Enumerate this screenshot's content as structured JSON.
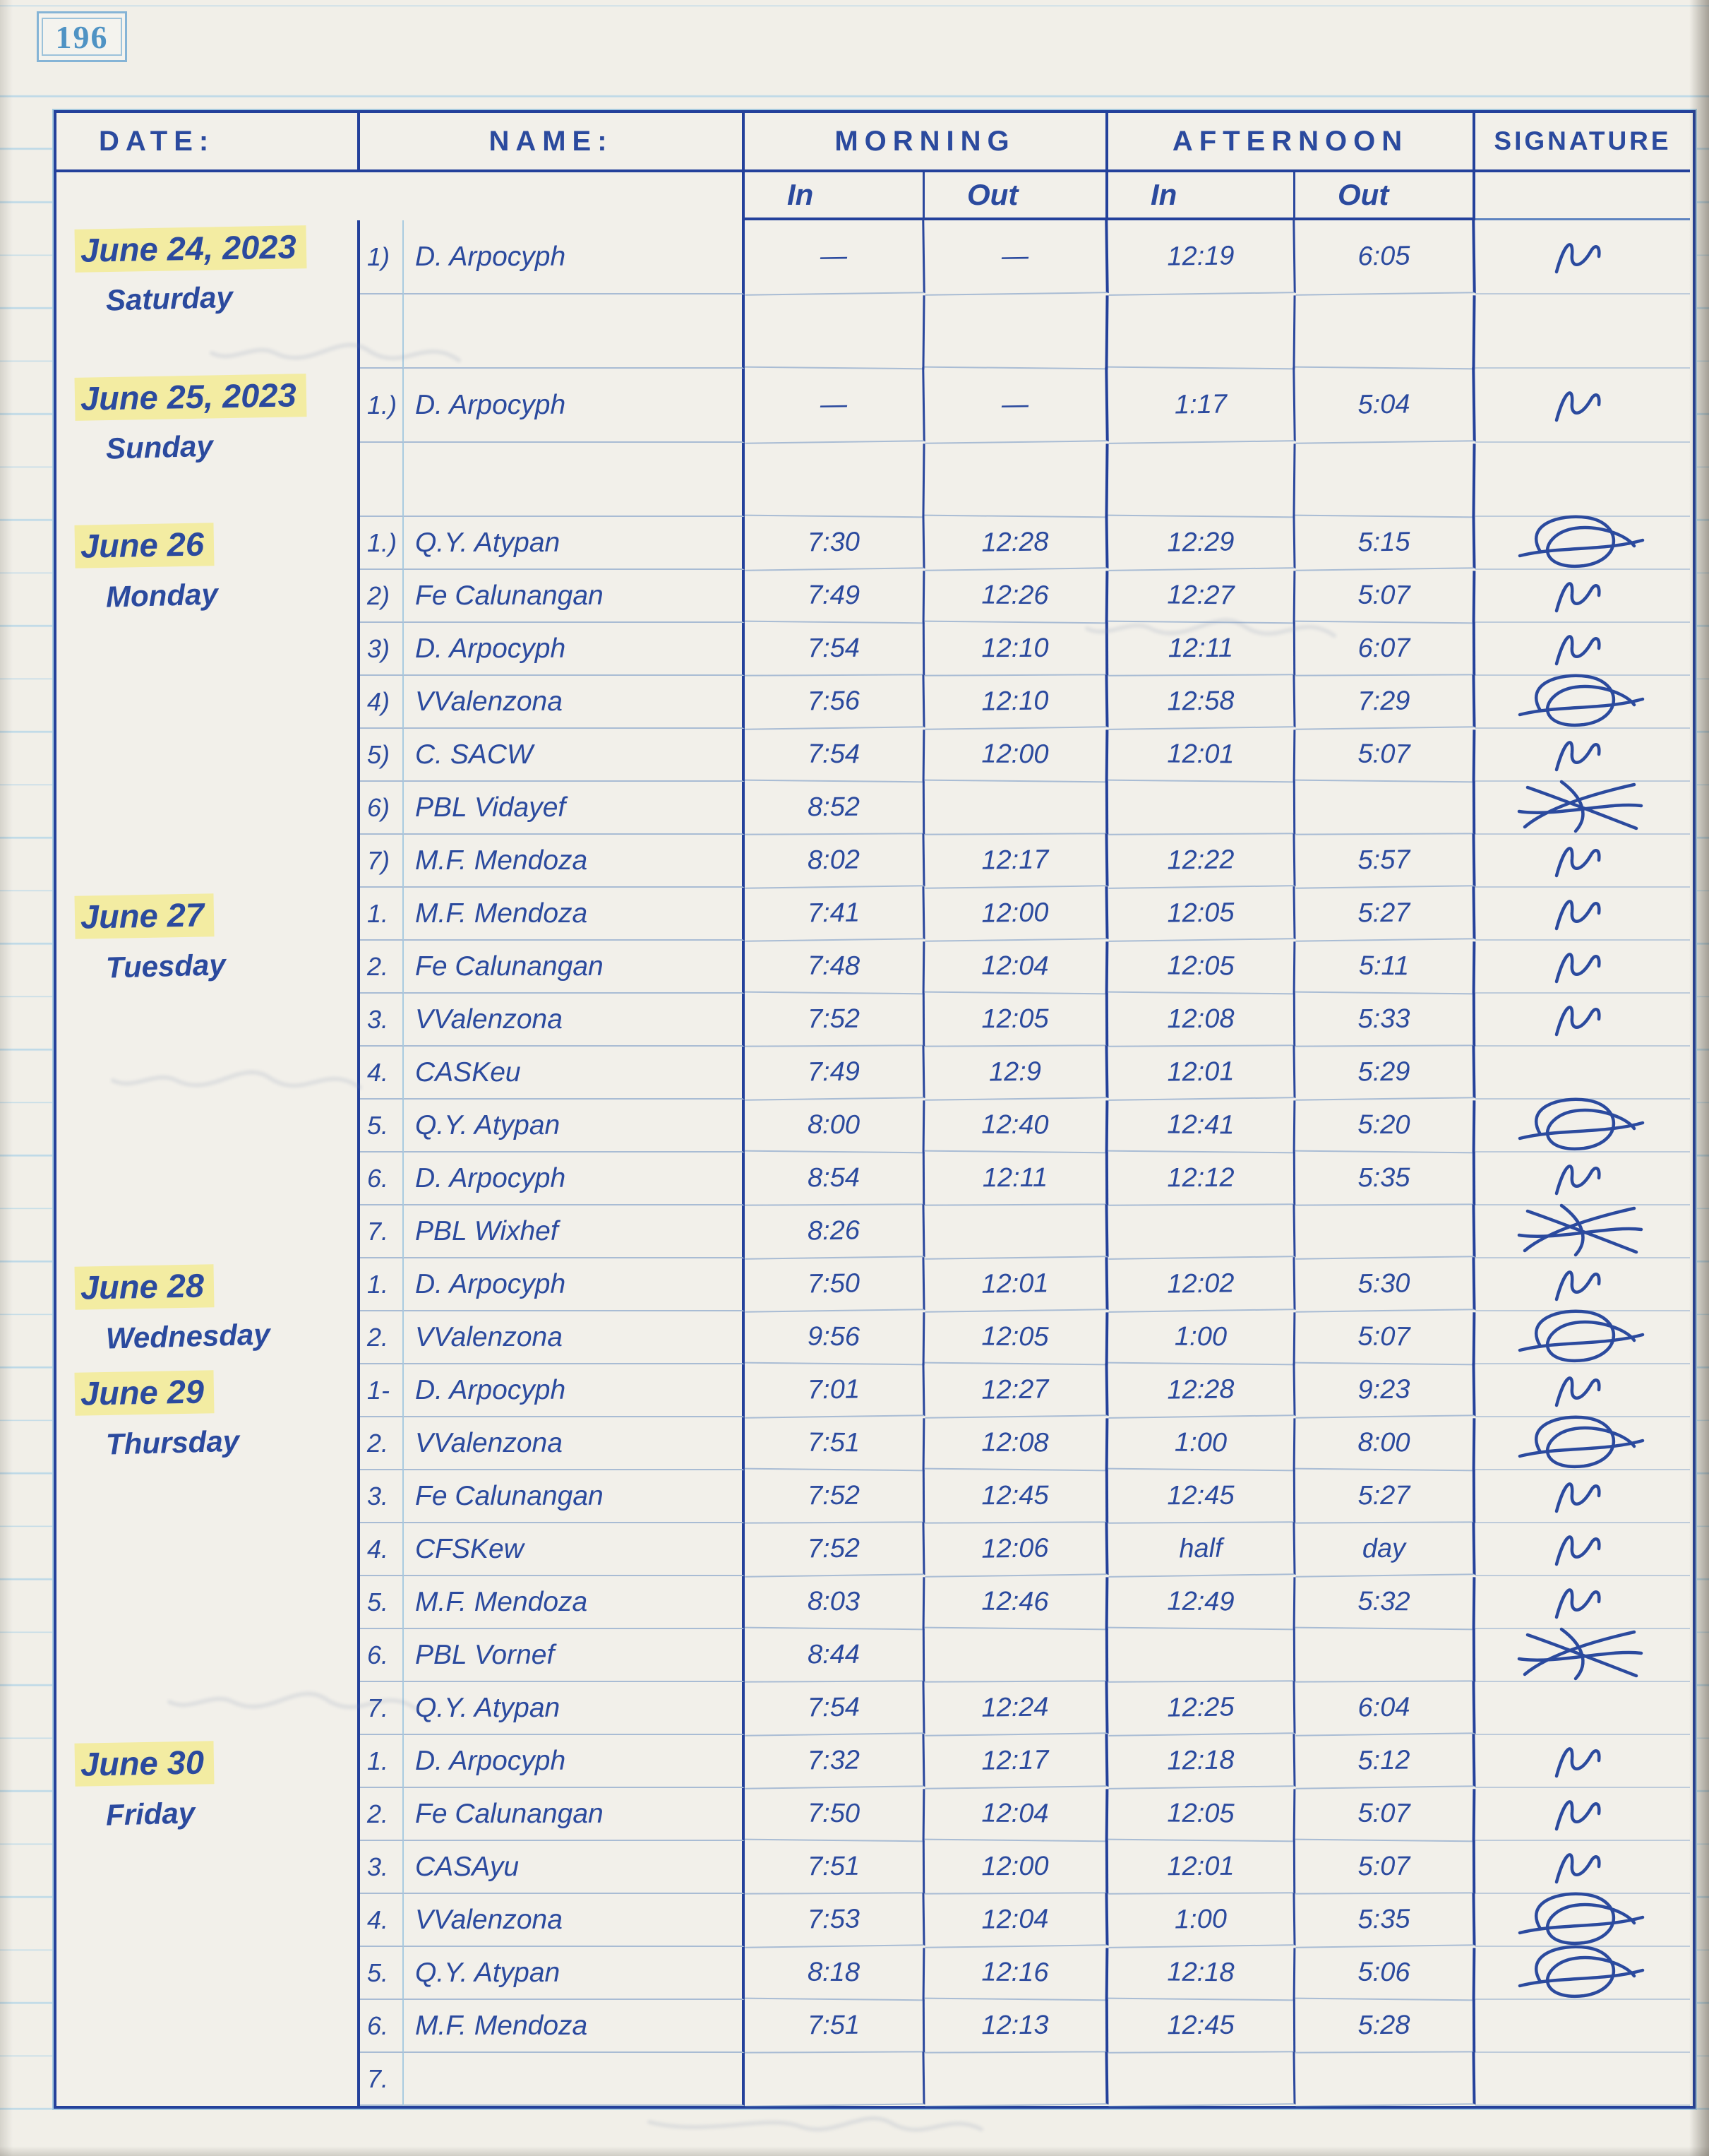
{
  "page_number": "196",
  "ink_color": "#2b4a9e",
  "highlight_color": "#f3eca2",
  "header": {
    "date_label": "DATE:",
    "name_label": "NAME:",
    "morning_label": "MORNING",
    "afternoon_label": "AFTERNOON",
    "signature_label": "SIGNATURE",
    "in_label": "In",
    "out_label": "Out"
  },
  "sections": [
    {
      "date_line1": "June 24, 2023",
      "date_line2": "Saturday",
      "rows": [
        {
          "num": "1)",
          "name": "D. Arpocyph",
          "m_in": "—",
          "m_out": "—",
          "a_in": "12:19",
          "a_out": "6:05",
          "signature": "squiggle"
        }
      ]
    },
    {
      "date_line1": "June 25, 2023",
      "date_line2": "Sunday",
      "rows": [
        {
          "num": "1.)",
          "name": "D. Arpocyph",
          "m_in": "—",
          "m_out": "—",
          "a_in": "1:17",
          "a_out": "5:04",
          "signature": "squiggle"
        }
      ]
    },
    {
      "date_line1": "June 26",
      "date_line2": "Monday",
      "rows": [
        {
          "num": "1.)",
          "name": "Q.Y. Atypan",
          "m_in": "7:30",
          "m_out": "12:28",
          "a_in": "12:29",
          "a_out": "5:15",
          "signature": "oval"
        },
        {
          "num": "2)",
          "name": "Fe Calunangan",
          "m_in": "7:49",
          "m_out": "12:26",
          "a_in": "12:27",
          "a_out": "5:07",
          "signature": "squiggle"
        },
        {
          "num": "3)",
          "name": "D. Arpocyph",
          "m_in": "7:54",
          "m_out": "12:10",
          "a_in": "12:11",
          "a_out": "6:07",
          "signature": "squiggle"
        },
        {
          "num": "4)",
          "name": "VValenzona",
          "m_in": "7:56",
          "m_out": "12:10",
          "a_in": "12:58",
          "a_out": "7:29",
          "signature": "oval"
        },
        {
          "num": "5)",
          "name": "C. SACW",
          "m_in": "7:54",
          "m_out": "12:00",
          "a_in": "12:01",
          "a_out": "5:07",
          "signature": "squiggle"
        },
        {
          "num": "6)",
          "name": "PBL Vidayef",
          "m_in": "8:52",
          "m_out": "",
          "a_in": "",
          "a_out": "",
          "signature": "crossout",
          "slash": true
        },
        {
          "num": "7)",
          "name": "M.F. Mendoza",
          "m_in": "8:02",
          "m_out": "12:17",
          "a_in": "12:22",
          "a_out": "5:57",
          "signature": "squiggle"
        }
      ]
    },
    {
      "date_line1": "June 27",
      "date_line2": "Tuesday",
      "rows": [
        {
          "num": "1.",
          "name": "M.F. Mendoza",
          "m_in": "7:41",
          "m_out": "12:00",
          "a_in": "12:05",
          "a_out": "5:27",
          "signature": "squiggle"
        },
        {
          "num": "2.",
          "name": "Fe Calunangan",
          "m_in": "7:48",
          "m_out": "12:04",
          "a_in": "12:05",
          "a_out": "5:11",
          "signature": "squiggle"
        },
        {
          "num": "3.",
          "name": "VValenzona",
          "m_in": "7:52",
          "m_out": "12:05",
          "a_in": "12:08",
          "a_out": "5:33",
          "signature": "squiggle"
        },
        {
          "num": "4.",
          "name": "CASKeu",
          "m_in": "7:49",
          "m_out": "12:9",
          "a_in": "12:01",
          "a_out": "5:29",
          "signature": ""
        },
        {
          "num": "5.",
          "name": "Q.Y. Atypan",
          "m_in": "8:00",
          "m_out": "12:40",
          "a_in": "12:41",
          "a_out": "5:20",
          "signature": "oval"
        },
        {
          "num": "6.",
          "name": "D. Arpocyph",
          "m_in": "8:54",
          "m_out": "12:11",
          "a_in": "12:12",
          "a_out": "5:35",
          "signature": "squiggle"
        },
        {
          "num": "7.",
          "name": "PBL Wixhef",
          "m_in": "8:26",
          "m_out": "",
          "a_in": "",
          "a_out": "",
          "signature": "crossout"
        }
      ]
    },
    {
      "date_line1": "June 28",
      "date_line2": "Wednesday",
      "rows": [
        {
          "num": "1.",
          "name": "D. Arpocyph",
          "m_in": "7:50",
          "m_out": "12:01",
          "a_in": "12:02",
          "a_out": "5:30",
          "signature": "squiggle"
        },
        {
          "num": "2.",
          "name": "VValenzona",
          "m_in": "9:56",
          "m_out": "12:05",
          "a_in": "1:00",
          "a_out": "5:07",
          "signature": "oval"
        }
      ]
    },
    {
      "date_line1": "June 29",
      "date_line2": "Thursday",
      "rows": [
        {
          "num": "1-",
          "name": "D. Arpocyph",
          "m_in": "7:01",
          "m_out": "12:27",
          "a_in": "12:28",
          "a_out": "9:23",
          "signature": "squiggle"
        },
        {
          "num": "2.",
          "name": "VValenzona",
          "m_in": "7:51",
          "m_out": "12:08",
          "a_in": "1:00",
          "a_out": "8:00",
          "signature": "oval"
        },
        {
          "num": "3.",
          "name": "Fe Calunangan",
          "m_in": "7:52",
          "m_out": "12:45",
          "a_in": "12:45",
          "a_out": "5:27",
          "signature": "squiggle"
        },
        {
          "num": "4.",
          "name": "CFSKew",
          "m_in": "7:52",
          "m_out": "12:06",
          "a_in": "half",
          "a_out": "day",
          "signature": "squiggle"
        },
        {
          "num": "5.",
          "name": "M.F. Mendoza",
          "m_in": "8:03",
          "m_out": "12:46",
          "a_in": "12:49",
          "a_out": "5:32",
          "signature": "squiggle"
        },
        {
          "num": "6.",
          "name": "PBL Vornef",
          "m_in": "8:44",
          "m_out": "",
          "a_in": "",
          "a_out": "",
          "signature": "crossout"
        },
        {
          "num": "7.",
          "name": "Q.Y. Atypan",
          "m_in": "7:54",
          "m_out": "12:24",
          "a_in": "12:25",
          "a_out": "6:04",
          "signature": ""
        }
      ]
    },
    {
      "date_line1": "June 30",
      "date_line2": "Friday",
      "rows": [
        {
          "num": "1.",
          "name": "D. Arpocyph",
          "m_in": "7:32",
          "m_out": "12:17",
          "a_in": "12:18",
          "a_out": "5:12",
          "signature": "squiggle"
        },
        {
          "num": "2.",
          "name": "Fe Calunangan",
          "m_in": "7:50",
          "m_out": "12:04",
          "a_in": "12:05",
          "a_out": "5:07",
          "signature": "squiggle"
        },
        {
          "num": "3.",
          "name": "CASAyu",
          "m_in": "7:51",
          "m_out": "12:00",
          "a_in": "12:01",
          "a_out": "5:07",
          "signature": "squiggle"
        },
        {
          "num": "4.",
          "name": "VValenzona",
          "m_in": "7:53",
          "m_out": "12:04",
          "a_in": "1:00",
          "a_out": "5:35",
          "signature": "oval"
        },
        {
          "num": "5.",
          "name": "Q.Y. Atypan",
          "m_in": "8:18",
          "m_out": "12:16",
          "a_in": "12:18",
          "a_out": "5:06",
          "signature": "oval"
        },
        {
          "num": "6.",
          "name": "M.F. Mendoza",
          "m_in": "7:51",
          "m_out": "12:13",
          "a_in": "12:45",
          "a_out": "5:28",
          "signature": ""
        },
        {
          "num": "7.",
          "name": "",
          "m_in": "",
          "m_out": "",
          "a_in": "",
          "a_out": "",
          "signature": ""
        }
      ]
    }
  ]
}
